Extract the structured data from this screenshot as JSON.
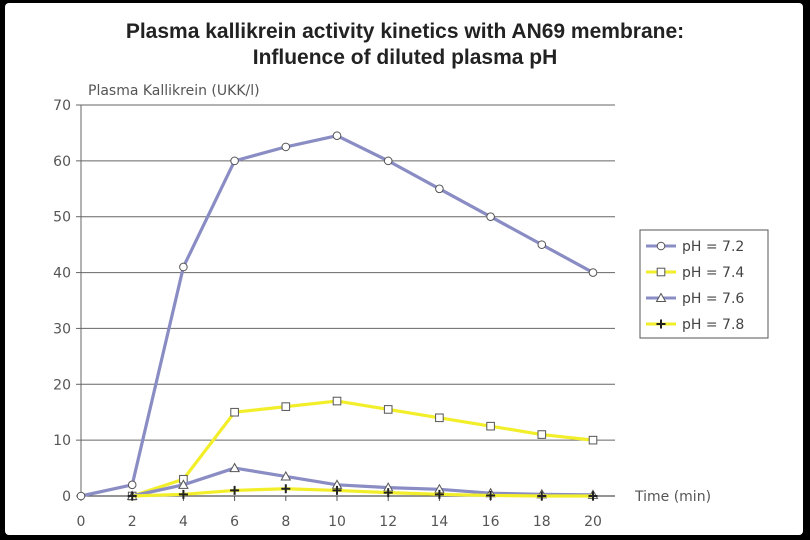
{
  "chart_data": {
    "type": "line",
    "title": "Plasma kallikrein activity kinetics with AN69 membrane:",
    "subtitle": "Influence of diluted plasma pH",
    "ylabel": "Plasma Kallikrein (UKK/l)",
    "xlabel": "Time (min)",
    "xlim": [
      0,
      20
    ],
    "ylim": [
      0,
      70
    ],
    "x": [
      0,
      2,
      4,
      6,
      8,
      10,
      12,
      14,
      16,
      18,
      20
    ],
    "x_ticks": [
      "0",
      "2",
      "4",
      "6",
      "8",
      "10",
      "12",
      "14",
      "16",
      "18",
      "20"
    ],
    "y_ticks": [
      "0",
      "10",
      "20",
      "30",
      "40",
      "50",
      "60",
      "70"
    ],
    "y_tick_values": [
      0,
      10,
      20,
      30,
      40,
      50,
      60,
      70
    ],
    "grid": true,
    "legend_position": "right",
    "series": [
      {
        "name": "pH = 7.2",
        "color": "#8a8cc4",
        "marker": "circle",
        "x": [
          0,
          2,
          4,
          6,
          8,
          10,
          12,
          14,
          16,
          18,
          20
        ],
        "values": [
          0,
          2,
          41,
          60,
          62.5,
          64.5,
          60,
          55,
          50,
          45,
          40
        ]
      },
      {
        "name": "pH = 7.4",
        "color": "#f2ee2a",
        "marker": "square",
        "x": [
          2,
          4,
          6,
          8,
          10,
          12,
          14,
          16,
          18,
          20
        ],
        "values": [
          0,
          3,
          15,
          16,
          17,
          15.5,
          14,
          12.5,
          11,
          10
        ]
      },
      {
        "name": "pH = 7.6",
        "color": "#8a8cc4",
        "marker": "triangle",
        "x": [
          2,
          4,
          6,
          8,
          10,
          12,
          14,
          16,
          18,
          20
        ],
        "values": [
          0,
          2,
          5,
          3.5,
          2,
          1.5,
          1.2,
          0.5,
          0.3,
          0.2
        ]
      },
      {
        "name": "pH = 7.8",
        "color": "#f2ee2a",
        "marker": "plus",
        "x": [
          2,
          4,
          6,
          8,
          10,
          12,
          14,
          16,
          18,
          20
        ],
        "values": [
          0,
          0.3,
          1,
          1.3,
          1,
          0.6,
          0.3,
          0.1,
          0,
          0
        ]
      }
    ]
  }
}
